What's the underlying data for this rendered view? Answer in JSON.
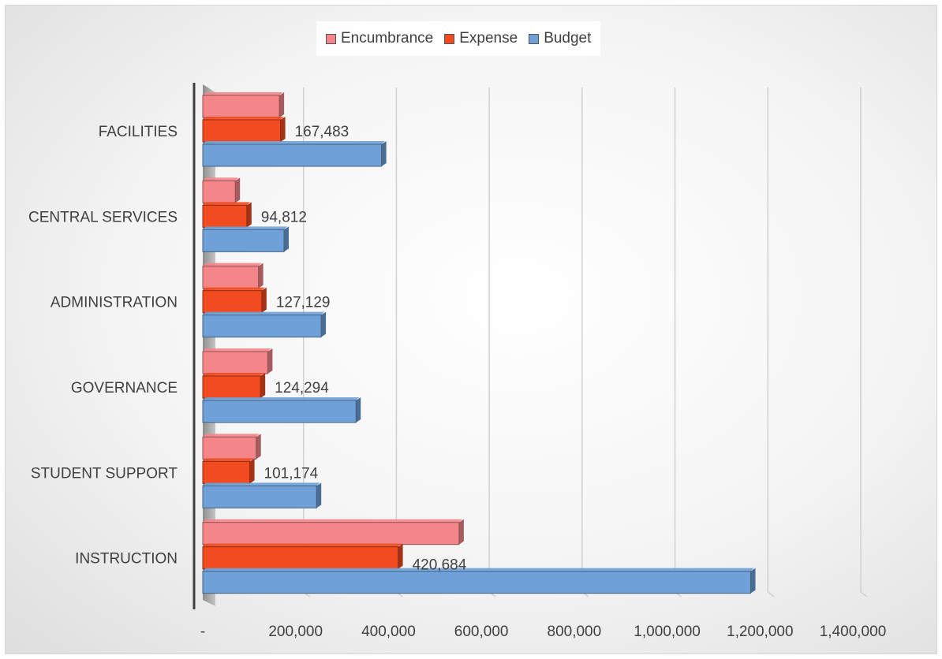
{
  "chart_data": {
    "type": "bar",
    "orientation": "horizontal",
    "categories": [
      "FACILITIES",
      "CENTRAL SERVICES",
      "ADMINISTRATION",
      "GOVERNANCE",
      "STUDENT SUPPORT",
      "INSTRUCTION"
    ],
    "series": [
      {
        "name": "Encumbrance",
        "color": "#f4868a",
        "values": [
          165000,
          70000,
          120000,
          140000,
          115000,
          552000
        ]
      },
      {
        "name": "Expense",
        "color": "#f14b1f",
        "values": [
          167483,
          94812,
          127129,
          124294,
          101174,
          420684
        ]
      },
      {
        "name": "Budget",
        "color": "#6fa1d8",
        "values": [
          385000,
          175000,
          255000,
          330000,
          245000,
          1180000
        ]
      }
    ],
    "data_labels": {
      "series": "Expense",
      "text": [
        "167,483",
        "94,812",
        "127,129",
        "124,294",
        "101,174",
        "420,684"
      ]
    },
    "x_ticks": [
      "-",
      "200,000",
      "400,000",
      "600,000",
      "800,000",
      "1,000,000",
      "1,200,000",
      "1,400,000"
    ],
    "xlim": [
      0,
      1400000
    ],
    "grid": true,
    "legend_position": "top-center"
  }
}
